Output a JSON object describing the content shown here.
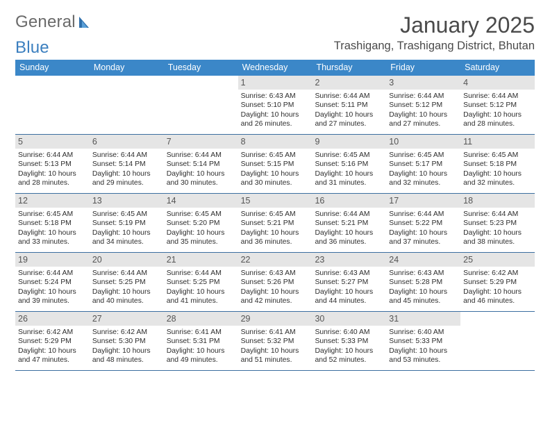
{
  "logo": {
    "text_a": "General",
    "text_b": "Blue"
  },
  "title": "January 2025",
  "subtitle": "Trashigang, Trashigang District, Bhutan",
  "accent_color": "#3b87c8",
  "rule_color": "#3b6ea0",
  "day_headers": [
    "Sunday",
    "Monday",
    "Tuesday",
    "Wednesday",
    "Thursday",
    "Friday",
    "Saturday"
  ],
  "weeks": [
    [
      {
        "empty": true
      },
      {
        "empty": true
      },
      {
        "empty": true
      },
      {
        "day": "1",
        "sunrise": "Sunrise: 6:43 AM",
        "sunset": "Sunset: 5:10 PM",
        "dl1": "Daylight: 10 hours",
        "dl2": "and 26 minutes."
      },
      {
        "day": "2",
        "sunrise": "Sunrise: 6:44 AM",
        "sunset": "Sunset: 5:11 PM",
        "dl1": "Daylight: 10 hours",
        "dl2": "and 27 minutes."
      },
      {
        "day": "3",
        "sunrise": "Sunrise: 6:44 AM",
        "sunset": "Sunset: 5:12 PM",
        "dl1": "Daylight: 10 hours",
        "dl2": "and 27 minutes."
      },
      {
        "day": "4",
        "sunrise": "Sunrise: 6:44 AM",
        "sunset": "Sunset: 5:12 PM",
        "dl1": "Daylight: 10 hours",
        "dl2": "and 28 minutes."
      }
    ],
    [
      {
        "day": "5",
        "sunrise": "Sunrise: 6:44 AM",
        "sunset": "Sunset: 5:13 PM",
        "dl1": "Daylight: 10 hours",
        "dl2": "and 28 minutes."
      },
      {
        "day": "6",
        "sunrise": "Sunrise: 6:44 AM",
        "sunset": "Sunset: 5:14 PM",
        "dl1": "Daylight: 10 hours",
        "dl2": "and 29 minutes."
      },
      {
        "day": "7",
        "sunrise": "Sunrise: 6:44 AM",
        "sunset": "Sunset: 5:14 PM",
        "dl1": "Daylight: 10 hours",
        "dl2": "and 30 minutes."
      },
      {
        "day": "8",
        "sunrise": "Sunrise: 6:45 AM",
        "sunset": "Sunset: 5:15 PM",
        "dl1": "Daylight: 10 hours",
        "dl2": "and 30 minutes."
      },
      {
        "day": "9",
        "sunrise": "Sunrise: 6:45 AM",
        "sunset": "Sunset: 5:16 PM",
        "dl1": "Daylight: 10 hours",
        "dl2": "and 31 minutes."
      },
      {
        "day": "10",
        "sunrise": "Sunrise: 6:45 AM",
        "sunset": "Sunset: 5:17 PM",
        "dl1": "Daylight: 10 hours",
        "dl2": "and 32 minutes."
      },
      {
        "day": "11",
        "sunrise": "Sunrise: 6:45 AM",
        "sunset": "Sunset: 5:18 PM",
        "dl1": "Daylight: 10 hours",
        "dl2": "and 32 minutes."
      }
    ],
    [
      {
        "day": "12",
        "sunrise": "Sunrise: 6:45 AM",
        "sunset": "Sunset: 5:18 PM",
        "dl1": "Daylight: 10 hours",
        "dl2": "and 33 minutes."
      },
      {
        "day": "13",
        "sunrise": "Sunrise: 6:45 AM",
        "sunset": "Sunset: 5:19 PM",
        "dl1": "Daylight: 10 hours",
        "dl2": "and 34 minutes."
      },
      {
        "day": "14",
        "sunrise": "Sunrise: 6:45 AM",
        "sunset": "Sunset: 5:20 PM",
        "dl1": "Daylight: 10 hours",
        "dl2": "and 35 minutes."
      },
      {
        "day": "15",
        "sunrise": "Sunrise: 6:45 AM",
        "sunset": "Sunset: 5:21 PM",
        "dl1": "Daylight: 10 hours",
        "dl2": "and 36 minutes."
      },
      {
        "day": "16",
        "sunrise": "Sunrise: 6:44 AM",
        "sunset": "Sunset: 5:21 PM",
        "dl1": "Daylight: 10 hours",
        "dl2": "and 36 minutes."
      },
      {
        "day": "17",
        "sunrise": "Sunrise: 6:44 AM",
        "sunset": "Sunset: 5:22 PM",
        "dl1": "Daylight: 10 hours",
        "dl2": "and 37 minutes."
      },
      {
        "day": "18",
        "sunrise": "Sunrise: 6:44 AM",
        "sunset": "Sunset: 5:23 PM",
        "dl1": "Daylight: 10 hours",
        "dl2": "and 38 minutes."
      }
    ],
    [
      {
        "day": "19",
        "sunrise": "Sunrise: 6:44 AM",
        "sunset": "Sunset: 5:24 PM",
        "dl1": "Daylight: 10 hours",
        "dl2": "and 39 minutes."
      },
      {
        "day": "20",
        "sunrise": "Sunrise: 6:44 AM",
        "sunset": "Sunset: 5:25 PM",
        "dl1": "Daylight: 10 hours",
        "dl2": "and 40 minutes."
      },
      {
        "day": "21",
        "sunrise": "Sunrise: 6:44 AM",
        "sunset": "Sunset: 5:25 PM",
        "dl1": "Daylight: 10 hours",
        "dl2": "and 41 minutes."
      },
      {
        "day": "22",
        "sunrise": "Sunrise: 6:43 AM",
        "sunset": "Sunset: 5:26 PM",
        "dl1": "Daylight: 10 hours",
        "dl2": "and 42 minutes."
      },
      {
        "day": "23",
        "sunrise": "Sunrise: 6:43 AM",
        "sunset": "Sunset: 5:27 PM",
        "dl1": "Daylight: 10 hours",
        "dl2": "and 44 minutes."
      },
      {
        "day": "24",
        "sunrise": "Sunrise: 6:43 AM",
        "sunset": "Sunset: 5:28 PM",
        "dl1": "Daylight: 10 hours",
        "dl2": "and 45 minutes."
      },
      {
        "day": "25",
        "sunrise": "Sunrise: 6:42 AM",
        "sunset": "Sunset: 5:29 PM",
        "dl1": "Daylight: 10 hours",
        "dl2": "and 46 minutes."
      }
    ],
    [
      {
        "day": "26",
        "sunrise": "Sunrise: 6:42 AM",
        "sunset": "Sunset: 5:29 PM",
        "dl1": "Daylight: 10 hours",
        "dl2": "and 47 minutes."
      },
      {
        "day": "27",
        "sunrise": "Sunrise: 6:42 AM",
        "sunset": "Sunset: 5:30 PM",
        "dl1": "Daylight: 10 hours",
        "dl2": "and 48 minutes."
      },
      {
        "day": "28",
        "sunrise": "Sunrise: 6:41 AM",
        "sunset": "Sunset: 5:31 PM",
        "dl1": "Daylight: 10 hours",
        "dl2": "and 49 minutes."
      },
      {
        "day": "29",
        "sunrise": "Sunrise: 6:41 AM",
        "sunset": "Sunset: 5:32 PM",
        "dl1": "Daylight: 10 hours",
        "dl2": "and 51 minutes."
      },
      {
        "day": "30",
        "sunrise": "Sunrise: 6:40 AM",
        "sunset": "Sunset: 5:33 PM",
        "dl1": "Daylight: 10 hours",
        "dl2": "and 52 minutes."
      },
      {
        "day": "31",
        "sunrise": "Sunrise: 6:40 AM",
        "sunset": "Sunset: 5:33 PM",
        "dl1": "Daylight: 10 hours",
        "dl2": "and 53 minutes."
      },
      {
        "empty": true
      }
    ]
  ]
}
